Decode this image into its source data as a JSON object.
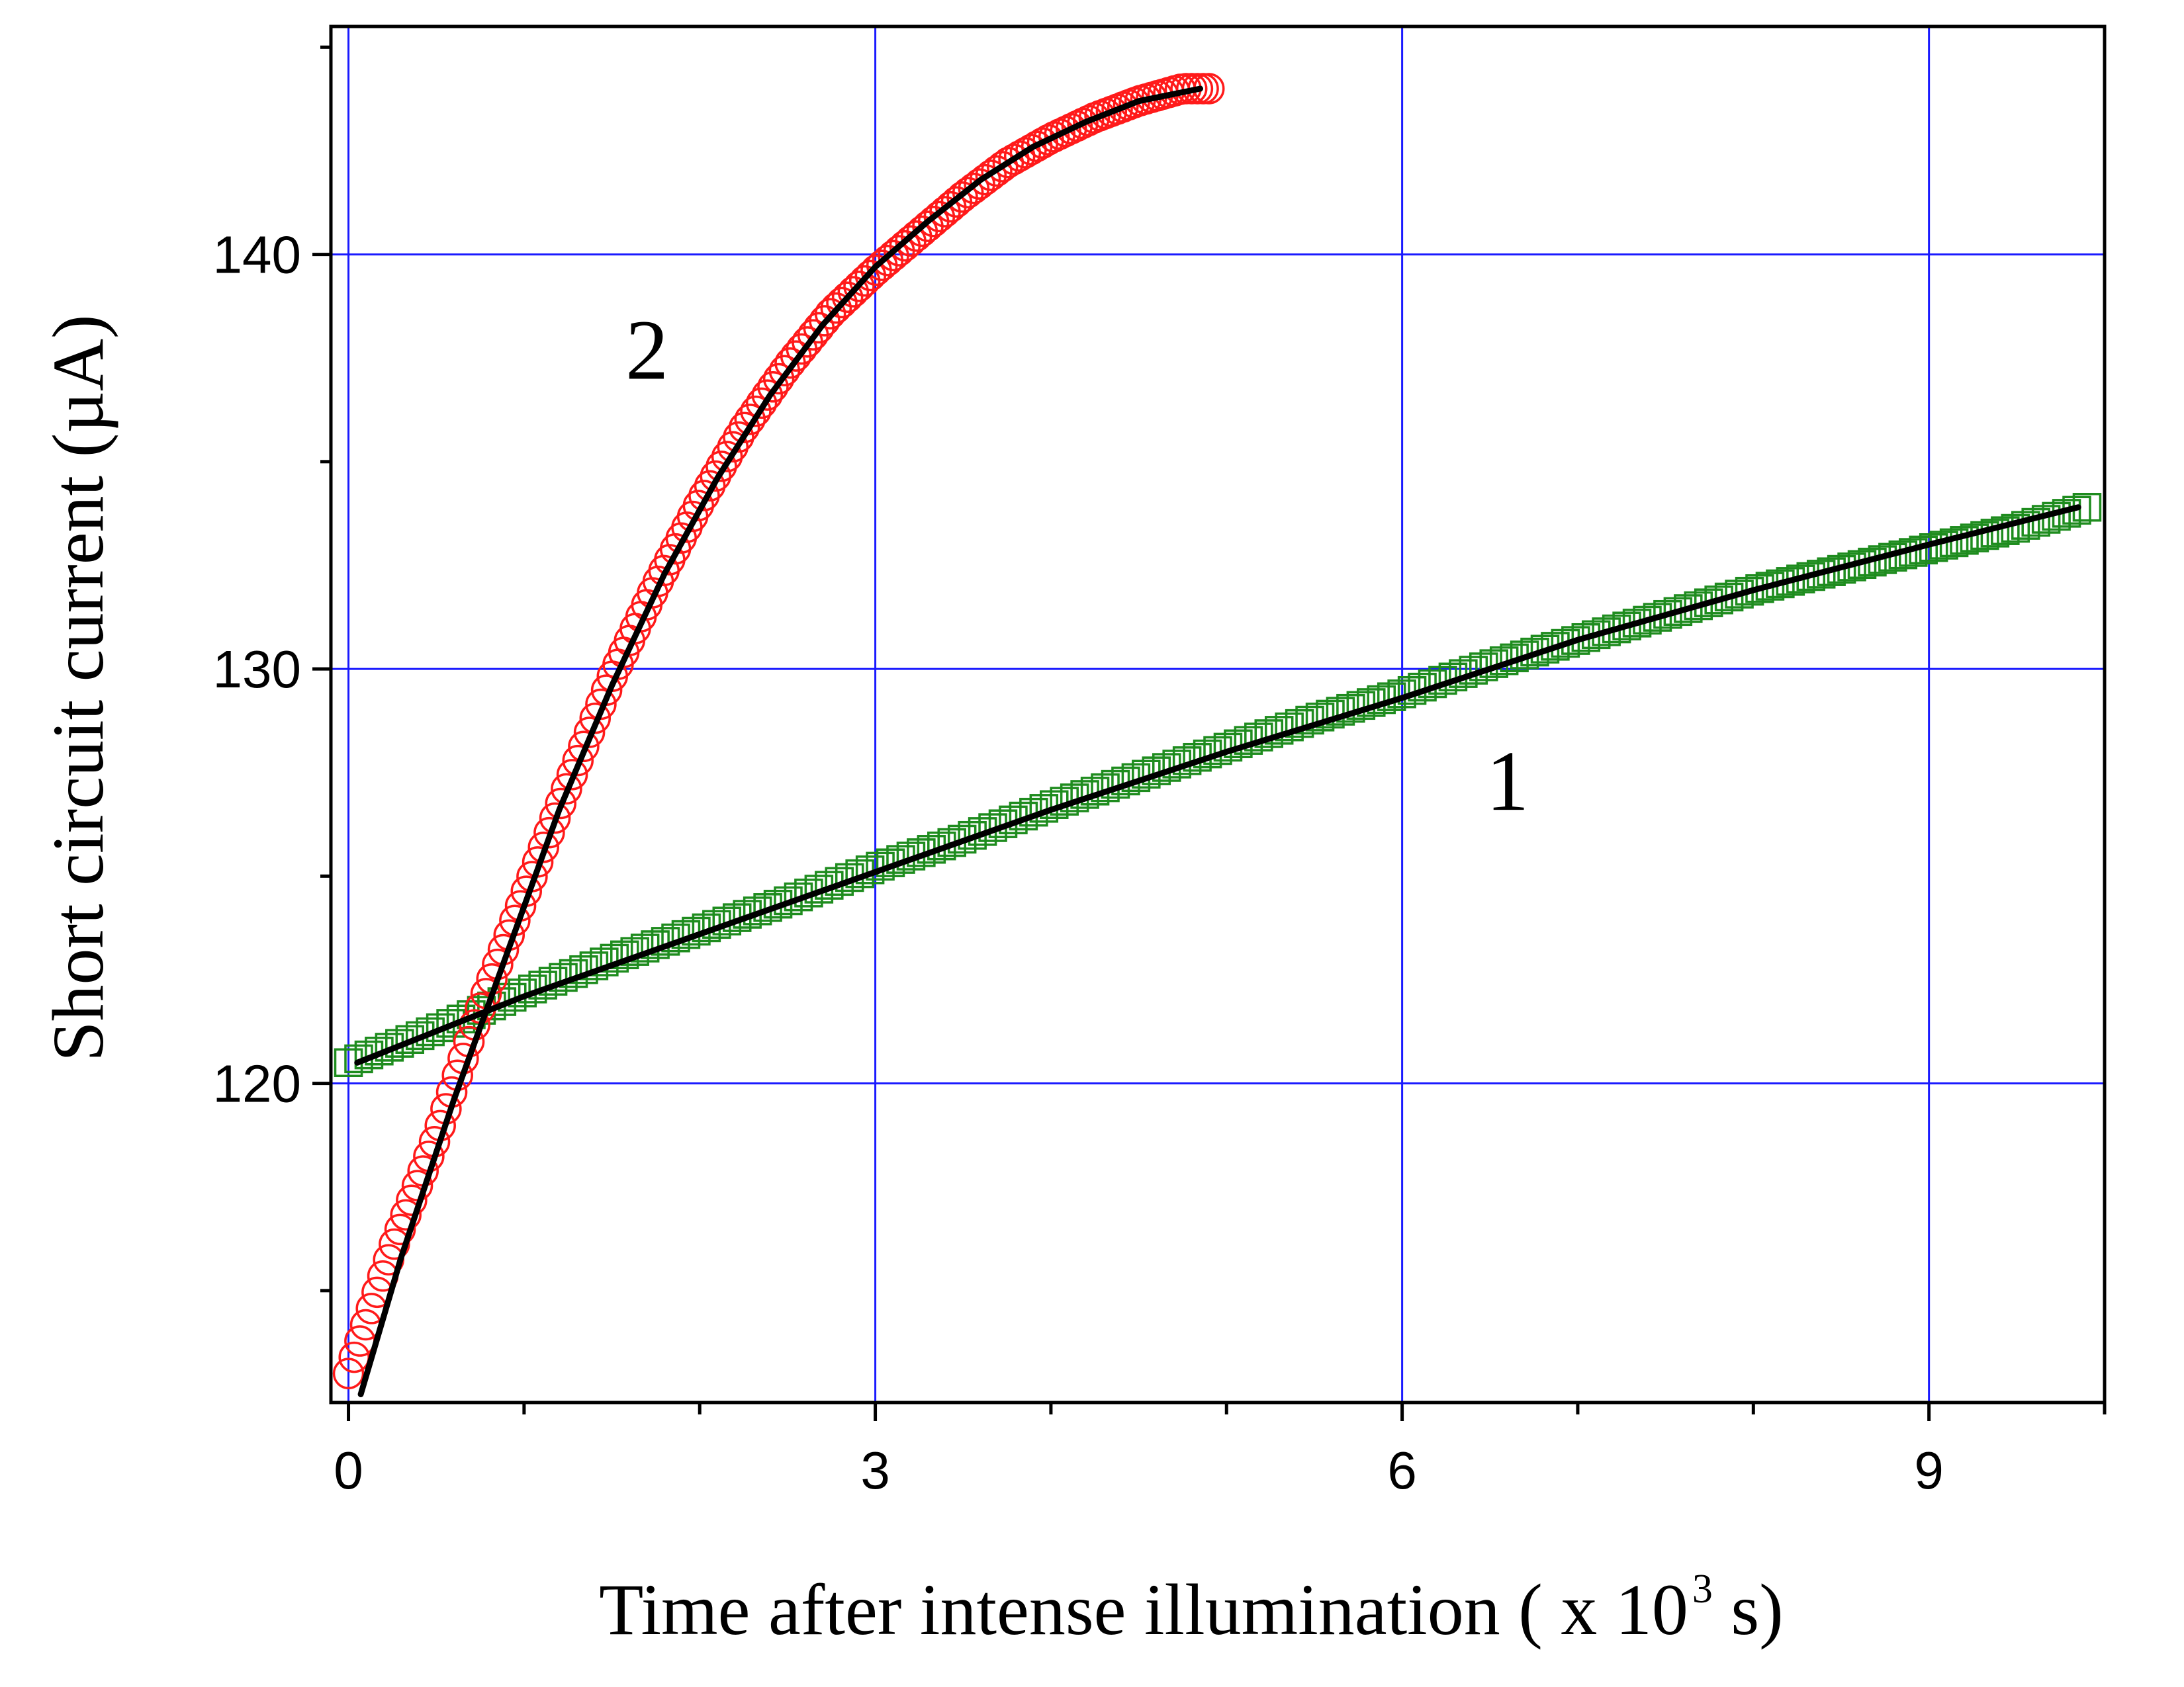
{
  "chart_data": {
    "type": "scatter",
    "xlabel_main": "Time after intense illumination ( x 10",
    "xlabel_sup": "3",
    "xlabel_end": " s)",
    "ylabel": "Short circuit current (µA)",
    "xlim": [
      -0.1,
      10.0
    ],
    "ylim": [
      112.3,
      145.5
    ],
    "xticks": [
      0,
      3,
      6,
      9
    ],
    "xtick_labels": [
      "0",
      "3",
      "6",
      "9"
    ],
    "yticks": [
      120,
      130,
      140
    ],
    "ytick_labels": [
      "120",
      "130",
      "140"
    ],
    "grid": true,
    "grid_color": "#1a1aff",
    "series": [
      {
        "name": "1",
        "marker": "square",
        "color": "#1e8c1e",
        "x": [
          0.0,
          0.5,
          1.0,
          1.5,
          2.0,
          2.5,
          3.0,
          3.5,
          4.0,
          4.5,
          5.0,
          5.5,
          6.0,
          6.5,
          7.0,
          7.5,
          8.0,
          8.5,
          9.0,
          9.5,
          9.9
        ],
        "y": [
          120.5,
          121.3,
          122.2,
          123.0,
          123.7,
          124.4,
          125.2,
          125.9,
          126.7,
          127.4,
          128.1,
          128.8,
          129.4,
          130.1,
          130.7,
          131.3,
          131.9,
          132.4,
          132.9,
          133.4,
          133.9
        ]
      },
      {
        "name": "2",
        "marker": "circle",
        "color": "#ff1a1a",
        "x": [
          0.0,
          0.25,
          0.5,
          0.75,
          1.0,
          1.25,
          1.5,
          1.75,
          2.0,
          2.25,
          2.5,
          2.75,
          3.0,
          3.25,
          3.5,
          3.75,
          4.0,
          4.25,
          4.5,
          4.75,
          4.9
        ],
        "y": [
          113.0,
          116.0,
          118.7,
          121.8,
          124.5,
          127.2,
          129.8,
          132.0,
          134.0,
          135.8,
          137.3,
          138.6,
          139.6,
          140.5,
          141.4,
          142.2,
          142.8,
          143.3,
          143.7,
          144.0,
          144.0
        ]
      }
    ],
    "fits": [
      {
        "for": "1",
        "color": "#000000",
        "x": [
          0.05,
          1.0,
          2.0,
          3.0,
          4.0,
          5.0,
          6.0,
          7.0,
          8.0,
          9.0,
          9.85
        ],
        "y": [
          120.5,
          122.1,
          123.6,
          125.1,
          126.6,
          128.0,
          129.3,
          130.7,
          131.9,
          133.0,
          133.9
        ]
      },
      {
        "for": "2",
        "color": "#000000",
        "x": [
          0.07,
          0.3,
          0.6,
          0.9,
          1.2,
          1.5,
          1.8,
          2.1,
          2.4,
          2.7,
          3.0,
          3.3,
          3.6,
          3.9,
          4.2,
          4.5,
          4.85
        ],
        "y": [
          112.5,
          115.8,
          119.6,
          123.1,
          126.6,
          129.6,
          132.3,
          134.6,
          136.6,
          138.3,
          139.7,
          140.8,
          141.8,
          142.6,
          143.2,
          143.7,
          144.0
        ]
      }
    ],
    "annotations": [
      {
        "text": "1",
        "x": 6.6,
        "y": 126.6
      },
      {
        "text": "2",
        "x": 1.7,
        "y": 137.0
      }
    ]
  }
}
